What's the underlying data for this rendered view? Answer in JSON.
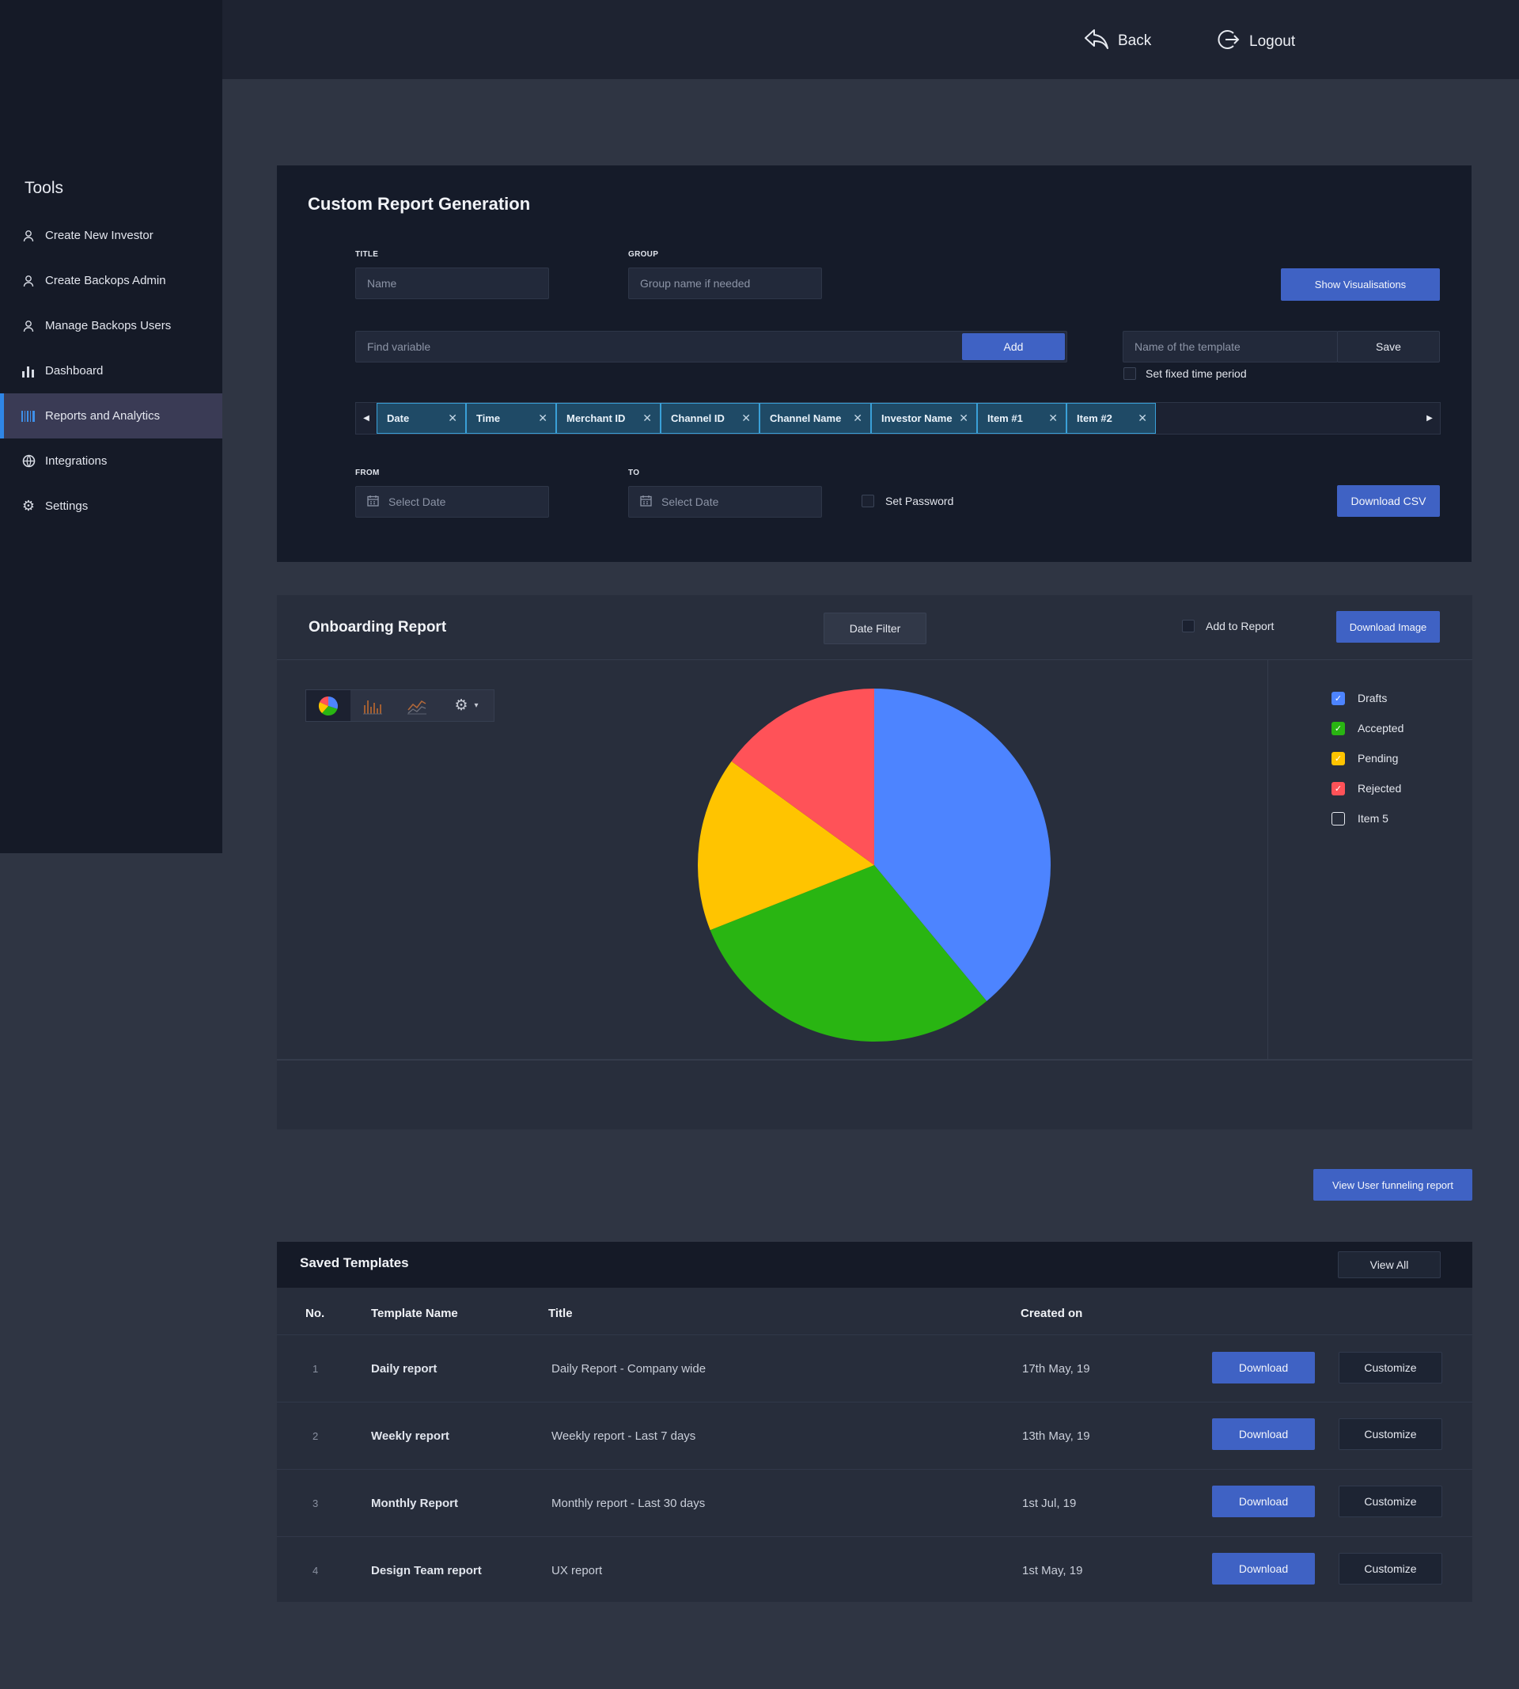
{
  "sidebar": {
    "title": "Tools",
    "items": [
      {
        "label": "Create New Investor",
        "icon": "user-icon"
      },
      {
        "label": "Create Backops Admin",
        "icon": "user-icon"
      },
      {
        "label": "Manage Backops Users",
        "icon": "user-icon"
      },
      {
        "label": "Dashboard",
        "icon": "bar-chart-icon"
      },
      {
        "label": "Reports and Analytics",
        "icon": "barcode-icon"
      },
      {
        "label": "Integrations",
        "icon": "globe-icon"
      },
      {
        "label": "Settings",
        "icon": "gear-icon"
      }
    ],
    "active_item": "Reports and Analytics",
    "accent": "#2f86e6"
  },
  "topbar": {
    "back_label": "Back",
    "logout_label": "Logout"
  },
  "report_gen": {
    "title": "Custom Report Generation",
    "title_label": "TITLE",
    "title_placeholder": "Name",
    "group_label": "GROUP",
    "group_placeholder": "Group name if needed",
    "show_vis_label": "Show Visualisations",
    "find_placeholder": "Find variable",
    "add_label": "Add",
    "template_placeholder": "Name of the template",
    "save_label": "Save",
    "fixed_period_label": "Set fixed time period",
    "chips": [
      "Date",
      "Time",
      "Merchant ID",
      "Channel ID",
      "Channel Name",
      "Investor Name",
      "Item #1",
      "Item #2"
    ],
    "from_label": "FROM",
    "to_label": "TO",
    "from_placeholder": "Select Date",
    "to_placeholder": "Select Date",
    "set_password_label": "Set Password",
    "download_csv_label": "Download CSV"
  },
  "onboarding": {
    "title": "Onboarding Report",
    "date_filter_label": "Date Filter",
    "add_to_report_label": "Add to Report",
    "download_image_label": "Download Image",
    "toolbar_icons": [
      "pie-chart-icon",
      "bar-chart-icon",
      "line-chart-icon",
      "gear-icon"
    ]
  },
  "chart_data": {
    "type": "pie",
    "categories": [
      "Drafts",
      "Accepted",
      "Pending",
      "Rejected",
      "Item 5"
    ],
    "values": [
      39,
      30,
      16,
      15,
      0
    ],
    "colors": [
      "#4d84ff",
      "#29b512",
      "#ffc400",
      "#ff5258",
      "#ffffff"
    ],
    "legend_checked": [
      true,
      true,
      true,
      true,
      false
    ],
    "legend_position": "right"
  },
  "funnel_button_label": "View User funneling report",
  "templates": {
    "title": "Saved Templates",
    "view_all_label": "View All",
    "headers": [
      "No.",
      "Template Name",
      "Title",
      "Created on"
    ],
    "download_label": "Download",
    "customize_label": "Customize",
    "rows": [
      {
        "no": "1",
        "name": "Daily report",
        "title": "Daily Report - Company wide",
        "created": "17th May, 19"
      },
      {
        "no": "2",
        "name": "Weekly report",
        "title": "Weekly report - Last 7 days",
        "created": "13th May, 19"
      },
      {
        "no": "3",
        "name": "Monthly Report",
        "title": "Monthly report - Last 30 days",
        "created": "1st Jul, 19"
      },
      {
        "no": "4",
        "name": "Design Team report",
        "title": "UX report",
        "created": "1st May, 19"
      }
    ]
  }
}
